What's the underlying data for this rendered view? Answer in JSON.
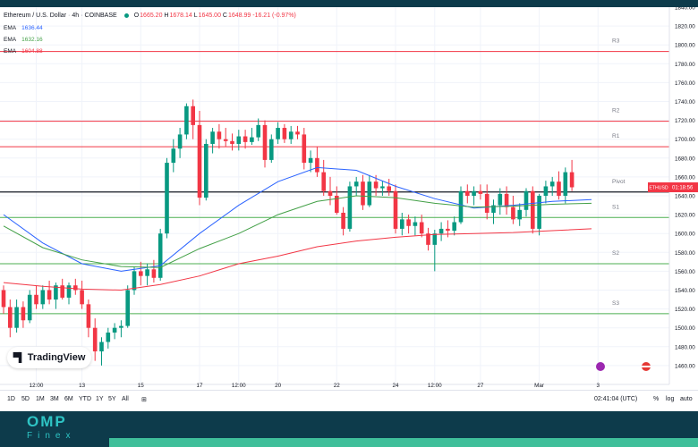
{
  "header": {
    "symbol": "Ethereum / U.S. Dollar",
    "interval": "4h",
    "exchange": "COINBASE",
    "open_label": "O",
    "open": "1665.20",
    "high_label": "H",
    "high": "1678.14",
    "low_label": "L",
    "low": "1645.00",
    "close_label": "C",
    "close": "1648.99",
    "change": "-16.21 (-0.97%)"
  },
  "indicators": [
    {
      "label": "EMA",
      "value": "1636.44",
      "color": "#2962ff"
    },
    {
      "label": "EMA",
      "value": "1632.16",
      "color": "#43a047"
    },
    {
      "label": "EMA",
      "value": "1604.88",
      "color": "#f23645"
    }
  ],
  "logo": {
    "text": "TradingView"
  },
  "toolbar": {
    "timeframes": [
      "1D",
      "5D",
      "1M",
      "3M",
      "6M",
      "YTD",
      "1Y",
      "5Y",
      "All"
    ],
    "time": "02:41:04 (UTC)",
    "percent": "%",
    "log": "log",
    "auto": "auto"
  },
  "brand": {
    "name": "OMP",
    "sub": "Finex"
  },
  "colors": {
    "up": "#089981",
    "down": "#f23645",
    "pivot": "#131722",
    "support": "#4caf50",
    "resistance": "#f23645"
  },
  "chart_data": {
    "type": "candlestick",
    "ylim": [
      1440,
      1840
    ],
    "y_ticks": [
      1460,
      1480,
      1500,
      1520,
      1540,
      1560,
      1580,
      1600,
      1620,
      1640,
      1660,
      1680,
      1700,
      1720,
      1740,
      1760,
      1780,
      1800,
      1820,
      1840
    ],
    "x_ticks": [
      {
        "label": "12:00",
        "bar": 5
      },
      {
        "label": "13",
        "bar": 12
      },
      {
        "label": "15",
        "bar": 21
      },
      {
        "label": "17",
        "bar": 30
      },
      {
        "label": "12:00",
        "bar": 36
      },
      {
        "label": "20",
        "bar": 42
      },
      {
        "label": "22",
        "bar": 51
      },
      {
        "label": "24",
        "bar": 60
      },
      {
        "label": "12:00",
        "bar": 66
      },
      {
        "label": "27",
        "bar": 73
      },
      {
        "label": "Mar",
        "bar": 82
      },
      {
        "label": "3",
        "bar": 91
      }
    ],
    "levels": [
      {
        "name": "R3",
        "value": 1793,
        "kind": "resistance"
      },
      {
        "name": "R2",
        "value": 1719,
        "kind": "resistance"
      },
      {
        "name": "R1",
        "value": 1692,
        "kind": "resistance"
      },
      {
        "name": "Pivot",
        "value": 1644,
        "kind": "pivot"
      },
      {
        "name": "S1",
        "value": 1617,
        "kind": "support"
      },
      {
        "name": "S2",
        "value": 1568,
        "kind": "support"
      },
      {
        "name": "S3",
        "value": 1515,
        "kind": "support"
      }
    ],
    "last_price_label": {
      "symbol": "ETHUSD",
      "countdown": "01:18:56",
      "value": 1648.99
    },
    "candles": [
      [
        1540,
        1545,
        1515,
        1522
      ],
      [
        1522,
        1530,
        1490,
        1500
      ],
      [
        1500,
        1530,
        1495,
        1522
      ],
      [
        1522,
        1528,
        1500,
        1508
      ],
      [
        1508,
        1540,
        1505,
        1535
      ],
      [
        1535,
        1545,
        1520,
        1525
      ],
      [
        1525,
        1545,
        1520,
        1540
      ],
      [
        1540,
        1550,
        1525,
        1530
      ],
      [
        1530,
        1548,
        1520,
        1545
      ],
      [
        1545,
        1552,
        1530,
        1532
      ],
      [
        1532,
        1548,
        1525,
        1545
      ],
      [
        1545,
        1552,
        1535,
        1540
      ],
      [
        1540,
        1550,
        1520,
        1525
      ],
      [
        1525,
        1530,
        1490,
        1500
      ],
      [
        1500,
        1510,
        1465,
        1475
      ],
      [
        1475,
        1490,
        1460,
        1485
      ],
      [
        1485,
        1500,
        1478,
        1495
      ],
      [
        1495,
        1505,
        1488,
        1500
      ],
      [
        1500,
        1508,
        1490,
        1502
      ],
      [
        1502,
        1545,
        1500,
        1540
      ],
      [
        1540,
        1565,
        1535,
        1560
      ],
      [
        1560,
        1570,
        1545,
        1555
      ],
      [
        1555,
        1568,
        1545,
        1562
      ],
      [
        1562,
        1572,
        1548,
        1553
      ],
      [
        1553,
        1605,
        1550,
        1600
      ],
      [
        1600,
        1680,
        1595,
        1675
      ],
      [
        1675,
        1700,
        1665,
        1690
      ],
      [
        1690,
        1712,
        1680,
        1705
      ],
      [
        1705,
        1738,
        1700,
        1735
      ],
      [
        1735,
        1742,
        1700,
        1715
      ],
      [
        1715,
        1730,
        1630,
        1638
      ],
      [
        1638,
        1700,
        1635,
        1695
      ],
      [
        1695,
        1712,
        1685,
        1708
      ],
      [
        1708,
        1716,
        1690,
        1700
      ],
      [
        1700,
        1712,
        1692,
        1698
      ],
      [
        1698,
        1706,
        1688,
        1695
      ],
      [
        1695,
        1710,
        1688,
        1703
      ],
      [
        1703,
        1710,
        1690,
        1697
      ],
      [
        1697,
        1712,
        1694,
        1702
      ],
      [
        1702,
        1722,
        1698,
        1715
      ],
      [
        1715,
        1720,
        1670,
        1678
      ],
      [
        1678,
        1705,
        1675,
        1700
      ],
      [
        1700,
        1718,
        1695,
        1712
      ],
      [
        1712,
        1716,
        1696,
        1700
      ],
      [
        1700,
        1714,
        1695,
        1708
      ],
      [
        1708,
        1714,
        1700,
        1705
      ],
      [
        1705,
        1712,
        1668,
        1675
      ],
      [
        1675,
        1688,
        1665,
        1680
      ],
      [
        1680,
        1692,
        1660,
        1665
      ],
      [
        1665,
        1678,
        1640,
        1645
      ],
      [
        1645,
        1660,
        1630,
        1640
      ],
      [
        1640,
        1650,
        1620,
        1622
      ],
      [
        1622,
        1628,
        1598,
        1605
      ],
      [
        1605,
        1655,
        1602,
        1650
      ],
      [
        1650,
        1660,
        1640,
        1655
      ],
      [
        1655,
        1662,
        1625,
        1630
      ],
      [
        1630,
        1662,
        1628,
        1655
      ],
      [
        1655,
        1662,
        1640,
        1648
      ],
      [
        1648,
        1656,
        1640,
        1650
      ],
      [
        1650,
        1658,
        1640,
        1645
      ],
      [
        1645,
        1652,
        1600,
        1605
      ],
      [
        1605,
        1622,
        1598,
        1615
      ],
      [
        1615,
        1620,
        1600,
        1608
      ],
      [
        1608,
        1618,
        1598,
        1612
      ],
      [
        1612,
        1620,
        1596,
        1600
      ],
      [
        1600,
        1606,
        1582,
        1588
      ],
      [
        1588,
        1604,
        1560,
        1600
      ],
      [
        1600,
        1612,
        1592,
        1605
      ],
      [
        1605,
        1614,
        1596,
        1603
      ],
      [
        1603,
        1618,
        1598,
        1612
      ],
      [
        1612,
        1650,
        1610,
        1645
      ],
      [
        1645,
        1652,
        1632,
        1640
      ],
      [
        1640,
        1650,
        1630,
        1645
      ],
      [
        1645,
        1652,
        1636,
        1642
      ],
      [
        1642,
        1652,
        1615,
        1622
      ],
      [
        1622,
        1636,
        1610,
        1630
      ],
      [
        1630,
        1648,
        1620,
        1642
      ],
      [
        1642,
        1650,
        1620,
        1628
      ],
      [
        1628,
        1640,
        1610,
        1615
      ],
      [
        1615,
        1632,
        1608,
        1625
      ],
      [
        1625,
        1648,
        1618,
        1645
      ],
      [
        1645,
        1650,
        1600,
        1605
      ],
      [
        1605,
        1642,
        1598,
        1640
      ],
      [
        1640,
        1656,
        1632,
        1650
      ],
      [
        1650,
        1660,
        1640,
        1655
      ],
      [
        1655,
        1666,
        1636,
        1640
      ],
      [
        1640,
        1670,
        1632,
        1665
      ],
      [
        1665,
        1678,
        1645,
        1649
      ]
    ],
    "ema_series": [
      {
        "label": "EMA",
        "color": "#2962ff",
        "values": [
          [
            0,
            1620
          ],
          [
            6,
            1590
          ],
          [
            12,
            1568
          ],
          [
            18,
            1560
          ],
          [
            24,
            1566
          ],
          [
            30,
            1600
          ],
          [
            36,
            1630
          ],
          [
            42,
            1655
          ],
          [
            48,
            1670
          ],
          [
            54,
            1667
          ],
          [
            60,
            1650
          ],
          [
            66,
            1637
          ],
          [
            72,
            1627
          ],
          [
            78,
            1630
          ],
          [
            84,
            1634
          ],
          [
            90,
            1636
          ]
        ]
      },
      {
        "label": "EMA",
        "color": "#43a047",
        "values": [
          [
            0,
            1608
          ],
          [
            6,
            1585
          ],
          [
            12,
            1572
          ],
          [
            18,
            1565
          ],
          [
            24,
            1564
          ],
          [
            30,
            1584
          ],
          [
            36,
            1600
          ],
          [
            42,
            1620
          ],
          [
            48,
            1634
          ],
          [
            54,
            1640
          ],
          [
            60,
            1638
          ],
          [
            66,
            1632
          ],
          [
            72,
            1628
          ],
          [
            78,
            1629
          ],
          [
            84,
            1631
          ],
          [
            90,
            1632
          ]
        ]
      },
      {
        "label": "EMA",
        "color": "#f23645",
        "values": [
          [
            0,
            1548
          ],
          [
            6,
            1544
          ],
          [
            12,
            1541
          ],
          [
            18,
            1540
          ],
          [
            24,
            1546
          ],
          [
            30,
            1555
          ],
          [
            36,
            1568
          ],
          [
            42,
            1576
          ],
          [
            48,
            1586
          ],
          [
            54,
            1592
          ],
          [
            60,
            1596
          ],
          [
            66,
            1599
          ],
          [
            72,
            1600
          ],
          [
            78,
            1601
          ],
          [
            84,
            1603
          ],
          [
            90,
            1605
          ]
        ]
      }
    ]
  }
}
